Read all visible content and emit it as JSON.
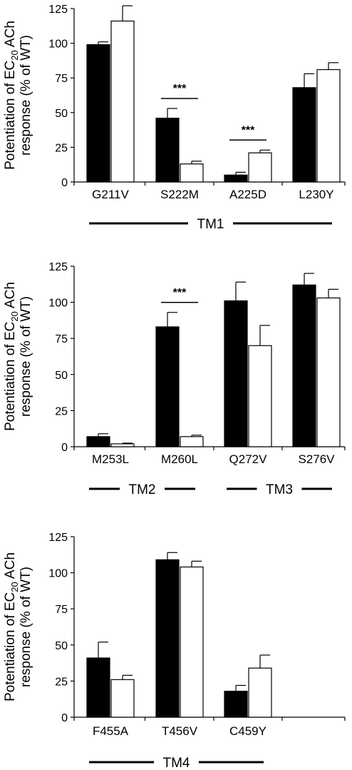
{
  "chart_data": [
    {
      "type": "bar",
      "ylabel_line1": "Potentiation of EC",
      "ylabel_sub": "20",
      "ylabel_line1_tail": " ACh",
      "ylabel_line2": "response (% of WT)",
      "ylim": [
        0,
        125
      ],
      "yticks": [
        0,
        25,
        50,
        75,
        100,
        125
      ],
      "categories": [
        "G211V",
        "S222M",
        "A225D",
        "L230Y"
      ],
      "series": [
        {
          "fill": "#000000",
          "values": [
            99,
            46,
            5,
            68
          ],
          "errors": [
            2,
            7,
            2,
            10
          ]
        },
        {
          "fill": "#ffffff",
          "values": [
            116,
            13,
            21,
            81
          ],
          "errors": [
            11,
            2,
            2,
            5
          ]
        }
      ],
      "significance": [
        {
          "category": 1,
          "label": "***"
        },
        {
          "category": 2,
          "label": "***"
        }
      ],
      "regions": [
        {
          "label": "TM1",
          "from": 0,
          "to": 3
        }
      ],
      "grid": false
    },
    {
      "type": "bar",
      "ylabel_line1": "Potentiation of EC",
      "ylabel_sub": "20",
      "ylabel_line1_tail": " ACh",
      "ylabel_line2": "response (% of WT)",
      "ylim": [
        0,
        125
      ],
      "yticks": [
        0,
        25,
        50,
        75,
        100,
        125
      ],
      "categories": [
        "M253L",
        "M260L",
        "Q272V",
        "S276V"
      ],
      "series": [
        {
          "fill": "#000000",
          "values": [
            7,
            83,
            101,
            112
          ],
          "errors": [
            2,
            10,
            13,
            8
          ]
        },
        {
          "fill": "#ffffff",
          "values": [
            2,
            7,
            70,
            103
          ],
          "errors": [
            0.5,
            1,
            14,
            6
          ]
        }
      ],
      "significance": [
        {
          "category": 1,
          "label": "***"
        }
      ],
      "regions": [
        {
          "label": "TM2",
          "from": 0,
          "to": 1
        },
        {
          "label": "TM3",
          "from": 2,
          "to": 3
        }
      ],
      "grid": false
    },
    {
      "type": "bar",
      "ylabel_line1": "Potentiation of EC",
      "ylabel_sub": "20",
      "ylabel_line1_tail": " ACh",
      "ylabel_line2": "response (% of WT)",
      "ylim": [
        0,
        125
      ],
      "yticks": [
        0,
        25,
        50,
        75,
        100,
        125
      ],
      "categories": [
        "F455A",
        "T456V",
        "C459Y",
        ""
      ],
      "series": [
        {
          "fill": "#000000",
          "values": [
            41,
            109,
            18,
            null
          ],
          "errors": [
            11,
            5,
            4,
            null
          ]
        },
        {
          "fill": "#ffffff",
          "values": [
            26,
            104,
            34,
            null
          ],
          "errors": [
            3,
            4,
            9,
            null
          ]
        }
      ],
      "significance": [],
      "regions": [
        {
          "label": "TM4",
          "from": 0,
          "to": 2
        }
      ],
      "grid": false
    }
  ]
}
